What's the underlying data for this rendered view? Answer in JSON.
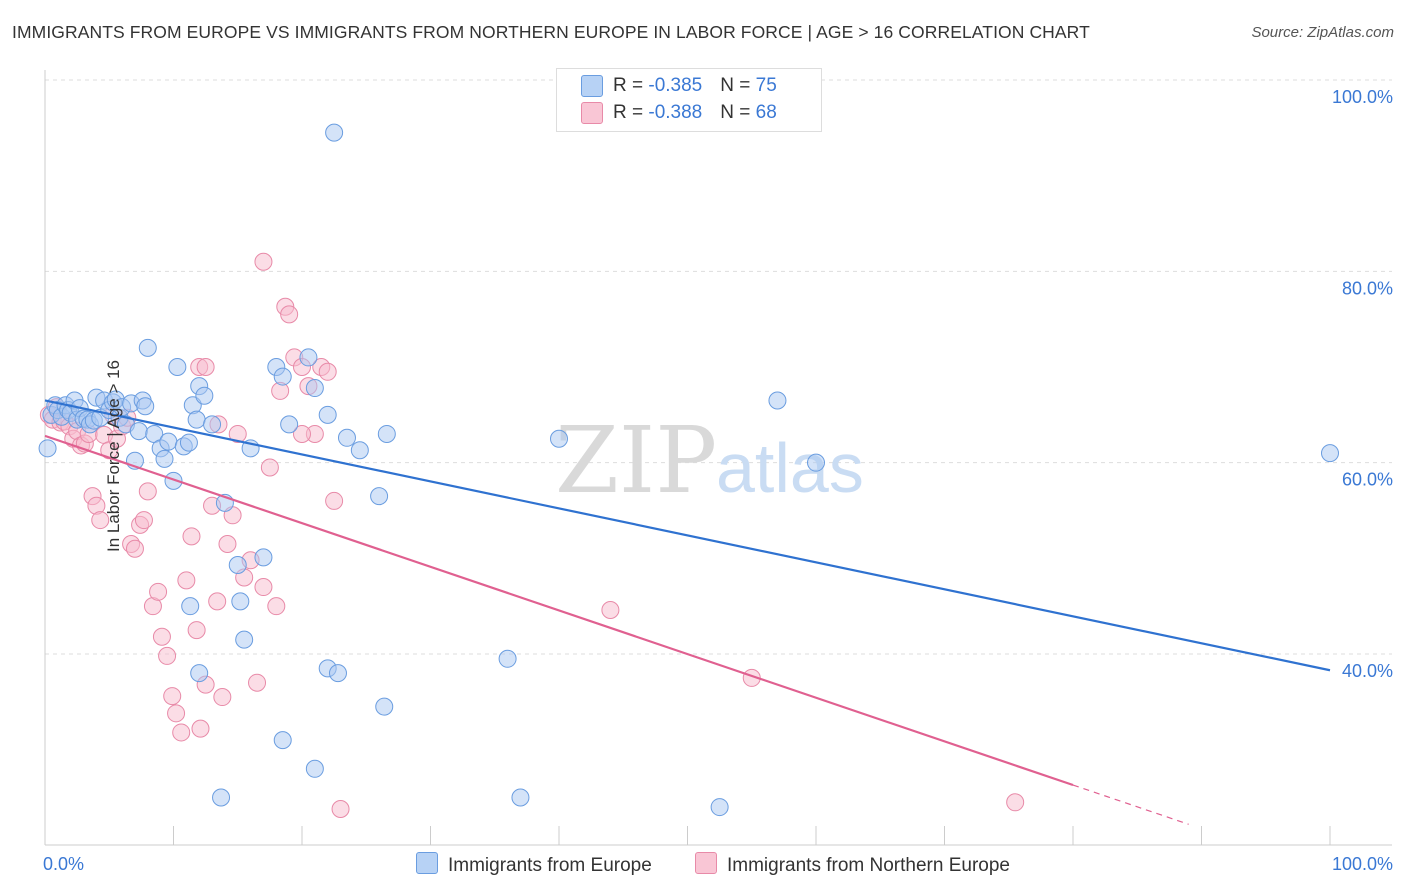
{
  "header": {
    "title": "IMMIGRANTS FROM EUROPE VS IMMIGRANTS FROM NORTHERN EUROPE IN LABOR FORCE | AGE > 16 CORRELATION CHART",
    "source": "Source: ZipAtlas.com"
  },
  "watermark": {
    "zip": "ZIP",
    "atlas": "atlas"
  },
  "legend": {
    "blue": {
      "r_label": "R = ",
      "r_value": "-0.385",
      "n_label": "N = ",
      "n_value": "75"
    },
    "pink": {
      "r_label": "R = ",
      "r_value": "-0.388",
      "n_label": "N = ",
      "n_value": "68"
    }
  },
  "colors": {
    "blue_fill": "#a9c8f2",
    "blue_stroke": "#6a9de0",
    "blue_line": "#2f72d0",
    "pink_fill": "#f7bccd",
    "pink_stroke": "#e88aa8",
    "pink_line": "#e06090",
    "tick_label": "#3a78d4",
    "grid": "#dddddd"
  },
  "chart_data": {
    "type": "scatter",
    "title": "IMMIGRANTS FROM EUROPE VS IMMIGRANTS FROM NORTHERN EUROPE IN LABOR FORCE | AGE > 16 CORRELATION CHART",
    "xlabel": "",
    "ylabel": "In Labor Force | Age > 16",
    "xlim": [
      0,
      100
    ],
    "ylim": [
      20,
      102
    ],
    "x_tick_labels": [
      "0.0%",
      "100.0%"
    ],
    "y_ticks": [
      {
        "value": 100,
        "label": "100.0%"
      },
      {
        "value": 80,
        "label": "80.0%"
      },
      {
        "value": 60,
        "label": "60.0%"
      },
      {
        "value": 40,
        "label": "40.0%"
      }
    ],
    "series": [
      {
        "name": "Immigrants from Europe",
        "color": "blue",
        "r": -0.385,
        "n": 75,
        "trend": {
          "x0": 0,
          "y0": 66.5,
          "x1": 100,
          "y1": 38.3,
          "dashed_from": null
        },
        "points": [
          [
            0.2,
            61.5
          ],
          [
            0.5,
            65
          ],
          [
            0.8,
            66
          ],
          [
            1.0,
            65.5
          ],
          [
            1.3,
            64.8
          ],
          [
            1.6,
            66
          ],
          [
            1.8,
            65.5
          ],
          [
            2.0,
            65.2
          ],
          [
            2.3,
            66.5
          ],
          [
            2.5,
            64.5
          ],
          [
            2.7,
            65.7
          ],
          [
            3.0,
            64.6
          ],
          [
            3.3,
            64.5
          ],
          [
            3.5,
            64
          ],
          [
            3.8,
            64.4
          ],
          [
            4.0,
            66.8
          ],
          [
            4.3,
            64.7
          ],
          [
            4.6,
            66.5
          ],
          [
            5.0,
            65.5
          ],
          [
            5.3,
            66.3
          ],
          [
            5.5,
            66.6
          ],
          [
            5.8,
            64.7
          ],
          [
            6.0,
            65.8
          ],
          [
            6.3,
            64
          ],
          [
            6.7,
            66.2
          ],
          [
            7.0,
            60.2
          ],
          [
            7.3,
            63.3
          ],
          [
            7.6,
            66.5
          ],
          [
            7.8,
            65.9
          ],
          [
            8.0,
            72
          ],
          [
            8.5,
            63
          ],
          [
            9.0,
            61.5
          ],
          [
            9.3,
            60.4
          ],
          [
            9.6,
            62.2
          ],
          [
            10.0,
            58.1
          ],
          [
            10.3,
            70
          ],
          [
            10.8,
            61.7
          ],
          [
            11.2,
            62.1
          ],
          [
            11.5,
            66
          ],
          [
            11.8,
            64.5
          ],
          [
            12.0,
            68
          ],
          [
            12.4,
            67
          ],
          [
            13.0,
            64
          ],
          [
            14.0,
            55.8
          ],
          [
            15.0,
            49.3
          ],
          [
            15.5,
            41.5
          ],
          [
            16.0,
            61.5
          ],
          [
            17.0,
            50.1
          ],
          [
            18.0,
            70
          ],
          [
            18.5,
            69
          ],
          [
            19.0,
            64
          ],
          [
            20.5,
            71
          ],
          [
            21.0,
            67.8
          ],
          [
            22.0,
            65
          ],
          [
            23.5,
            62.6
          ],
          [
            24.5,
            61.3
          ],
          [
            11.3,
            45
          ],
          [
            22.5,
            94.5
          ],
          [
            26.0,
            56.5
          ],
          [
            36.0,
            39.5
          ],
          [
            40.0,
            62.5
          ],
          [
            57.0,
            66.5
          ],
          [
            60.0,
            60
          ],
          [
            100,
            61
          ],
          [
            15.2,
            45.5
          ],
          [
            22.0,
            38.5
          ],
          [
            22.8,
            38
          ],
          [
            26.4,
            34.5
          ],
          [
            12.0,
            38
          ],
          [
            18.5,
            31
          ],
          [
            21.0,
            28
          ],
          [
            13.7,
            25
          ],
          [
            37.0,
            25
          ],
          [
            52.5,
            24
          ],
          [
            26.6,
            63
          ]
        ]
      },
      {
        "name": "Immigrants from Northern Europe",
        "color": "pink",
        "r": -0.388,
        "n": 68,
        "trend": {
          "x0": 0,
          "y0": 62.8,
          "x1": 89,
          "y1": 22.2,
          "dashed_from": 80
        },
        "points": [
          [
            0.3,
            65
          ],
          [
            0.6,
            64.5
          ],
          [
            0.9,
            65.8
          ],
          [
            1.2,
            64.2
          ],
          [
            1.5,
            64.3
          ],
          [
            1.9,
            63.8
          ],
          [
            2.2,
            62.5
          ],
          [
            2.5,
            63.3
          ],
          [
            2.8,
            61.8
          ],
          [
            3.1,
            62
          ],
          [
            3.4,
            63
          ],
          [
            3.7,
            56.5
          ],
          [
            4.0,
            55.5
          ],
          [
            4.3,
            54
          ],
          [
            4.6,
            62.9
          ],
          [
            5.0,
            61.3
          ],
          [
            5.3,
            65
          ],
          [
            5.6,
            62.5
          ],
          [
            6.0,
            63.8
          ],
          [
            6.4,
            64.7
          ],
          [
            6.7,
            51.5
          ],
          [
            7.0,
            51
          ],
          [
            7.4,
            53.5
          ],
          [
            7.7,
            54
          ],
          [
            8.0,
            57
          ],
          [
            8.4,
            45
          ],
          [
            8.8,
            46.5
          ],
          [
            9.1,
            41.8
          ],
          [
            9.5,
            39.8
          ],
          [
            9.9,
            35.6
          ],
          [
            10.2,
            33.8
          ],
          [
            10.6,
            31.8
          ],
          [
            11.0,
            47.7
          ],
          [
            11.4,
            52.3
          ],
          [
            11.8,
            42.5
          ],
          [
            12.1,
            32.2
          ],
          [
            12.5,
            36.8
          ],
          [
            13.0,
            55.5
          ],
          [
            13.4,
            45.5
          ],
          [
            13.8,
            35.5
          ],
          [
            14.2,
            51.5
          ],
          [
            14.6,
            54.5
          ],
          [
            15.0,
            63
          ],
          [
            15.5,
            48
          ],
          [
            16.0,
            49.8
          ],
          [
            16.5,
            37
          ],
          [
            17.0,
            47
          ],
          [
            17.5,
            59.5
          ],
          [
            18.0,
            45
          ],
          [
            18.3,
            67.5
          ],
          [
            18.7,
            76.3
          ],
          [
            19.0,
            75.5
          ],
          [
            19.4,
            71
          ],
          [
            20.0,
            70
          ],
          [
            20.5,
            68
          ],
          [
            21.0,
            63
          ],
          [
            21.5,
            70
          ],
          [
            22.0,
            69.5
          ],
          [
            22.5,
            56
          ],
          [
            23.0,
            23.8
          ],
          [
            12.0,
            70
          ],
          [
            12.5,
            70
          ],
          [
            17.0,
            81
          ],
          [
            20.0,
            63
          ],
          [
            13.5,
            64
          ],
          [
            44.0,
            44.6
          ],
          [
            55.0,
            37.5
          ],
          [
            75.5,
            24.5
          ]
        ]
      }
    ]
  },
  "bottom_legend": {
    "blue_label": "Immigrants from Europe",
    "pink_label": "Immigrants from Northern Europe"
  }
}
